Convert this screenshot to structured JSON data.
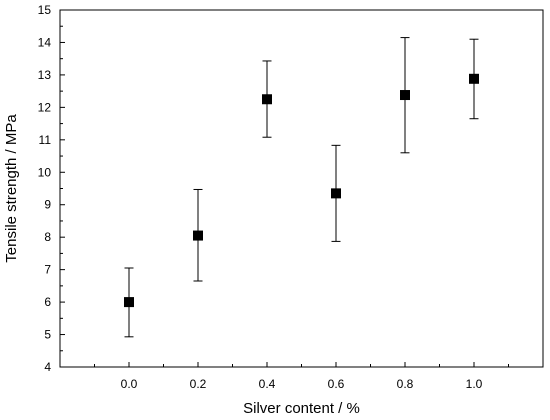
{
  "chart_data": {
    "type": "scatter",
    "title": "",
    "xlabel": "Silver content / %",
    "ylabel": "Tensile strength / MPa",
    "xlim": [
      -0.2,
      1.2
    ],
    "ylim": [
      4,
      15
    ],
    "x_ticks": [
      0.0,
      0.2,
      0.4,
      0.6,
      0.8,
      1.0
    ],
    "x_tick_labels": [
      "0.0",
      "0.2",
      "0.4",
      "0.6",
      "0.8",
      "1.0"
    ],
    "y_ticks": [
      4,
      5,
      6,
      7,
      8,
      9,
      10,
      11,
      12,
      13,
      14,
      15
    ],
    "y_tick_labels": [
      "4",
      "5",
      "6",
      "7",
      "8",
      "9",
      "10",
      "11",
      "12",
      "13",
      "14",
      "15"
    ],
    "grid": false,
    "legend": "none",
    "marker": "square",
    "marker_color": "#000000",
    "series": [
      {
        "x": [
          0.0,
          0.2,
          0.4,
          0.6,
          0.8,
          1.0
        ],
        "y": [
          6.0,
          8.05,
          12.25,
          9.35,
          12.38,
          12.88
        ],
        "error_low": [
          4.93,
          6.65,
          11.08,
          7.87,
          10.6,
          11.65
        ],
        "error_high": [
          7.05,
          9.47,
          13.43,
          10.83,
          14.15,
          14.1
        ]
      }
    ]
  }
}
